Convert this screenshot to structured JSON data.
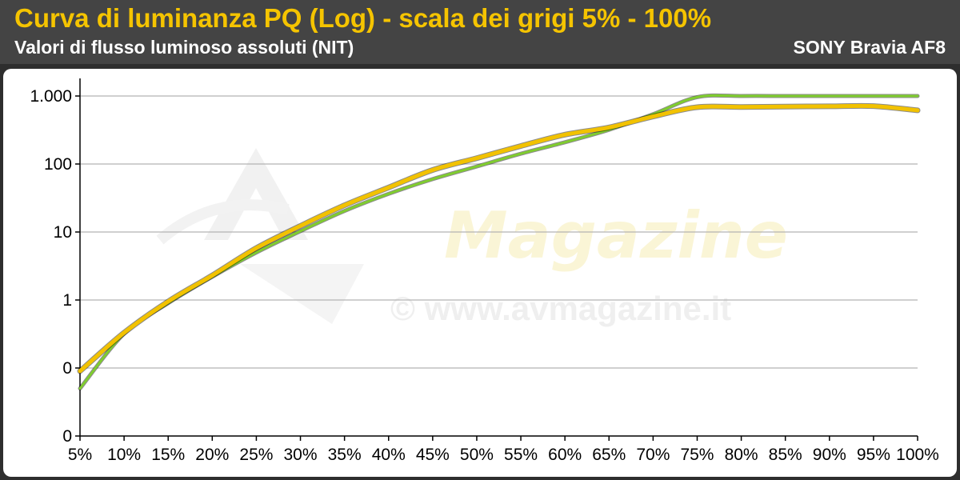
{
  "header": {
    "title": "Curva di luminanza PQ (Log) - scala dei grigi 5% - 100%",
    "subtitle": "Valori di flusso luminoso assoluti (NIT)",
    "device": "SONY Bravia AF8"
  },
  "watermark": {
    "brand": "Magazine",
    "url": "© www.avmagazine.it"
  },
  "colors": {
    "title": "#f5c400",
    "reference_line": "#7fcd2e",
    "measured_line": "#f2c200",
    "grid": "#b4b4b4"
  },
  "chart_data": {
    "type": "line",
    "title": "Curva di luminanza PQ (Log) - scala dei grigi 5% - 100%",
    "y_scale": "log",
    "y_tick_labels": [
      "0",
      "0",
      "1",
      "10",
      "100",
      "1.000"
    ],
    "y_tick_values": [
      0.01,
      0.1,
      1,
      10,
      100,
      1000
    ],
    "ylim": [
      0.01,
      1000
    ],
    "categories": [
      "5%",
      "10%",
      "15%",
      "20%",
      "25%",
      "30%",
      "35%",
      "40%",
      "45%",
      "50%",
      "55%",
      "60%",
      "65%",
      "70%",
      "75%",
      "80%",
      "85%",
      "90%",
      "95%",
      "100%"
    ],
    "grid": true,
    "series": [
      {
        "color": "#7fcd2e",
        "values": [
          0.05,
          0.32,
          0.9,
          2.2,
          5.0,
          10.3,
          20.4,
          36.4,
          59.9,
          92,
          142,
          209,
          319,
          541,
          962,
          1000,
          1000,
          1000,
          1000,
          1000
        ]
      },
      {
        "color": "#f2c200",
        "values": [
          0.09,
          0.33,
          0.95,
          2.3,
          5.8,
          12.3,
          24.7,
          45.1,
          81.6,
          122,
          184,
          270,
          345,
          500,
          685,
          690,
          700,
          705,
          710,
          615
        ]
      }
    ]
  }
}
